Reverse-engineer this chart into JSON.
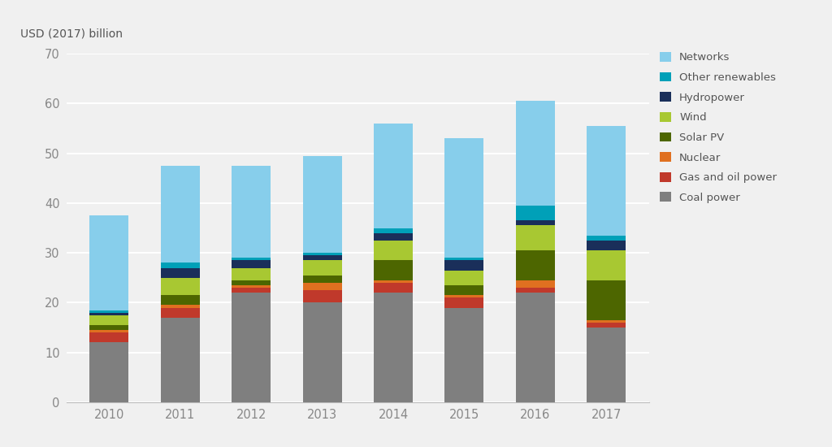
{
  "years": [
    "2010",
    "2011",
    "2012",
    "2013",
    "2014",
    "2015",
    "2016",
    "2017"
  ],
  "categories": [
    "Coal power",
    "Gas and oil power",
    "Nuclear",
    "Solar PV",
    "Wind",
    "Hydropower",
    "Other renewables",
    "Networks"
  ],
  "colors": [
    "#7f7f7f",
    "#c0392b",
    "#e07020",
    "#4d6600",
    "#a8c832",
    "#1a2f5a",
    "#00a0b8",
    "#87ceeb"
  ],
  "data": {
    "Coal power": [
      12,
      17,
      22,
      20,
      22,
      19,
      22,
      15
    ],
    "Gas and oil power": [
      2,
      2,
      1,
      2.5,
      2,
      2,
      1,
      1
    ],
    "Nuclear": [
      0.5,
      0.5,
      0.5,
      1.5,
      0.5,
      0.5,
      1.5,
      0.5
    ],
    "Solar PV": [
      1,
      2,
      1,
      1.5,
      4,
      2,
      6,
      8
    ],
    "Wind": [
      2,
      3.5,
      2.5,
      3,
      4,
      3,
      5,
      6
    ],
    "Hydropower": [
      0.5,
      2,
      1.5,
      1,
      1.5,
      2,
      1,
      2
    ],
    "Other renewables": [
      0.5,
      1,
      0.5,
      0.5,
      1,
      0.5,
      3,
      1
    ],
    "Networks": [
      19,
      19.5,
      18.5,
      19.5,
      21,
      24,
      21,
      22
    ]
  },
  "ylabel": "USD (2017) billion",
  "ylim": [
    0,
    70
  ],
  "yticks": [
    0,
    10,
    20,
    30,
    40,
    50,
    60,
    70
  ],
  "bg_color": "#f0f0f0",
  "plot_bg_color": "#f0f0f0",
  "bar_width": 0.55,
  "figsize": [
    10.24,
    5.5
  ],
  "dpi": 100,
  "grid_color": "#ffffff",
  "tick_color": "#888888",
  "label_color": "#555555"
}
